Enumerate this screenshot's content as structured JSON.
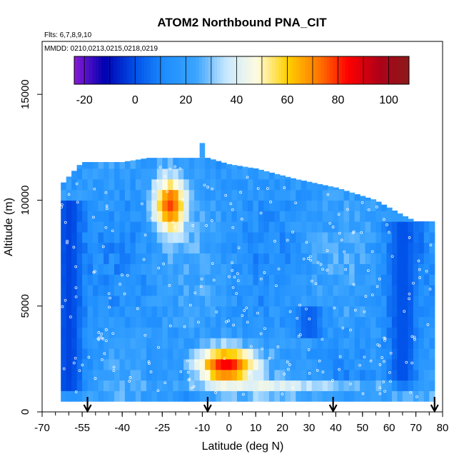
{
  "chart_data": {
    "type": "heatmap",
    "title": "ATOM2 Northbound PNA_CIT",
    "info_flights": "Flts: 6,7,8,9,10",
    "info_dates": "MMDD: 0210,0213,0215,0218,0219",
    "xlabel": "Latitude (deg N)",
    "ylabel": "Altitude (m)",
    "xlim": [
      -70,
      80
    ],
    "ylim": [
      0,
      17500
    ],
    "x_ticks": [
      -70,
      -55,
      -40,
      -25,
      -10,
      0,
      10,
      20,
      30,
      40,
      50,
      60,
      70,
      80
    ],
    "y_ticks": [
      0,
      5000,
      10000,
      15000
    ],
    "colorbar": {
      "range": [
        -24,
        108
      ],
      "ticks": [
        -20,
        0,
        20,
        40,
        60,
        80,
        100
      ],
      "stops": [
        "#8a1bd6",
        "#0000b0",
        "#0050e8",
        "#1f8fff",
        "#3aa4ff",
        "#c8e8ff",
        "#fffce0",
        "#ffd000",
        "#ff7a00",
        "#ff0000",
        "#b00018",
        "#8a1a1a"
      ]
    },
    "arrows_latitude": [
      -53,
      -8,
      39,
      77
    ],
    "grid": false,
    "bin_height_m": 500,
    "fields": [
      {
        "lat": -1,
        "alt": 2200,
        "value": 85,
        "width": 26,
        "height": 2000
      },
      {
        "lat": -22,
        "alt": 9800,
        "value": 78,
        "width": 14,
        "height": 3200
      },
      {
        "lat": 20,
        "alt": 1050,
        "value": 64,
        "width": 95,
        "height": 500
      }
    ],
    "profiles": [
      {
        "lat": -60,
        "alt_range": [
          1000,
          10000
        ],
        "value": -2
      },
      {
        "lat": 65,
        "alt_range": [
          1000,
          9000
        ],
        "value": 0
      },
      {
        "lat": 30,
        "alt_range": [
          3500,
          5000
        ],
        "value": 3
      }
    ],
    "top_edge": [
      [
        -63,
        10700
      ],
      [
        -55,
        11800
      ],
      [
        -40,
        11800
      ],
      [
        -30,
        12000
      ],
      [
        -8,
        12000
      ],
      [
        0,
        11700
      ],
      [
        10,
        11500
      ],
      [
        25,
        11000
      ],
      [
        40,
        10600
      ],
      [
        55,
        10000
      ],
      [
        65,
        9300
      ],
      [
        70,
        9000
      ],
      [
        75,
        9000
      ]
    ],
    "bottom_edge": [
      [
        -63,
        500
      ],
      [
        72,
        500
      ],
      [
        76,
        200
      ]
    ]
  }
}
